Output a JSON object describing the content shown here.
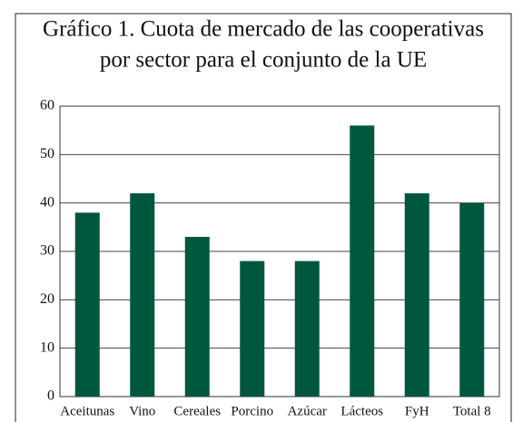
{
  "chart_data": {
    "type": "bar",
    "title": [
      "Gráfico 1. Cuota de mercado de las cooperativas",
      "por sector para el conjunto de la UE"
    ],
    "categories": [
      "Aceitunas",
      "Vino",
      "Cereales",
      "Porcino",
      "Azúcar",
      "Lácteos",
      "FyH",
      "Total 8"
    ],
    "values": [
      38,
      42,
      33,
      28,
      28,
      56,
      42,
      40
    ],
    "color": "#00573f",
    "ylim": [
      0,
      60
    ],
    "yticks": [
      0,
      10,
      20,
      30,
      40,
      50,
      60
    ],
    "grid": true
  }
}
